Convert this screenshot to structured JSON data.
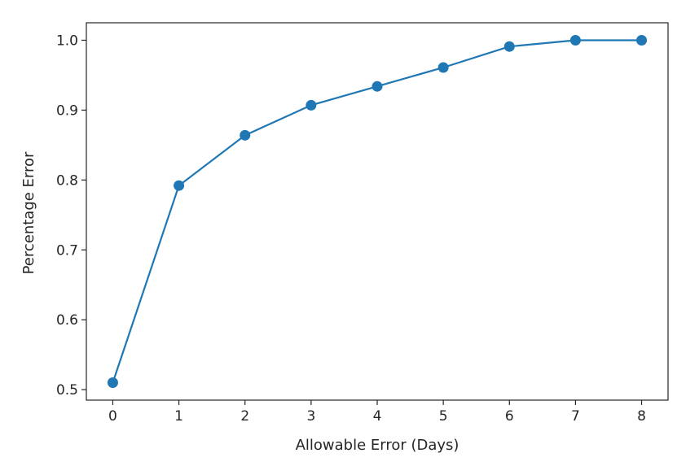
{
  "chart_data": {
    "type": "line",
    "xlabel": "Allowable Error (Days)",
    "ylabel": "Percentage Error",
    "xlim": [
      -0.4,
      8.4
    ],
    "ylim": [
      0.485,
      1.025
    ],
    "x_ticks": [
      0,
      1,
      2,
      3,
      4,
      5,
      6,
      7,
      8
    ],
    "x_tick_labels": [
      "0",
      "1",
      "2",
      "3",
      "4",
      "5",
      "6",
      "7",
      "8"
    ],
    "y_ticks": [
      0.5,
      0.6,
      0.7,
      0.8,
      0.9,
      1.0
    ],
    "y_tick_labels": [
      "0.5",
      "0.6",
      "0.7",
      "0.8",
      "0.9",
      "1.0"
    ],
    "grid": false,
    "series": [
      {
        "color": "#1f77b4",
        "marker": "circle",
        "x": [
          0,
          1,
          2,
          3,
          4,
          5,
          6,
          7,
          8
        ],
        "y": [
          0.51,
          0.792,
          0.864,
          0.907,
          0.934,
          0.961,
          0.991,
          1.0,
          1.0
        ]
      }
    ]
  }
}
